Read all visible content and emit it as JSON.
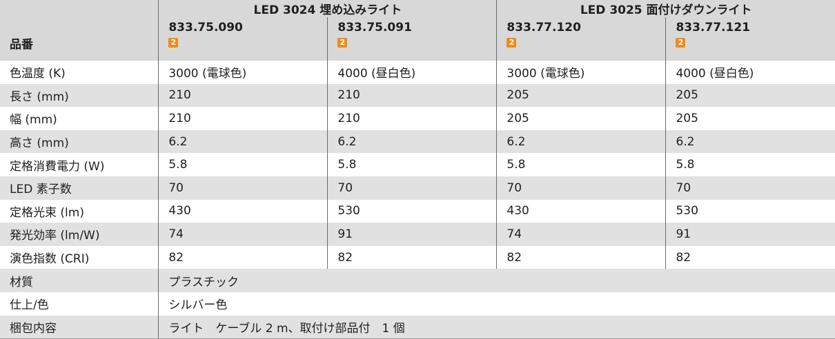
{
  "header": {
    "groups": [
      "LED 3024 埋め込みライト",
      "LED 3025 面付けダウンライト"
    ],
    "part_label": "品番",
    "parts": [
      "833.75.090",
      "833.75.091",
      "833.77.120",
      "833.77.121"
    ],
    "badge": "2",
    "badge_color": "#ef8a1a"
  },
  "rows": [
    {
      "label": "色温度 (K)",
      "values": [
        "3000 (電球色)",
        "4000 (昼白色)",
        "3000 (電球色)",
        "4000 (昼白色)"
      ]
    },
    {
      "label": "長さ (mm)",
      "values": [
        "210",
        "210",
        "205",
        "205"
      ]
    },
    {
      "label": "幅 (mm)",
      "values": [
        "210",
        "210",
        "205",
        "205"
      ]
    },
    {
      "label": "高さ (mm)",
      "values": [
        "6.2",
        "6.2",
        "6.2",
        "6.2"
      ]
    },
    {
      "label": "定格消費電力 (W)",
      "values": [
        "5.8",
        "5.8",
        "5.8",
        "5.8"
      ]
    },
    {
      "label": "LED 素子数",
      "values": [
        "70",
        "70",
        "70",
        "70"
      ]
    },
    {
      "label": "定格光束 (lm)",
      "values": [
        "430",
        "530",
        "430",
        "530"
      ]
    },
    {
      "label": "発光効率 (lm/W)",
      "values": [
        "74",
        "91",
        "74",
        "91"
      ]
    },
    {
      "label": "演色指数 (CRI)",
      "values": [
        "82",
        "82",
        "82",
        "82"
      ]
    }
  ],
  "merged_rows": [
    {
      "label": "材質",
      "value": "プラスチック"
    },
    {
      "label": "仕上/色",
      "value": "シルバー色"
    },
    {
      "label": "梱包内容",
      "value": "ライト　ケーブル 2 m、取付け部品付　1 個"
    }
  ],
  "colors": {
    "header_bg": "#d8d8d8",
    "stripe_bg": "#e1e1e1",
    "row_bg": "#ffffff"
  }
}
